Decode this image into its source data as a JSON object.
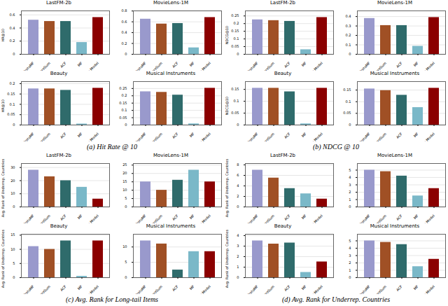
{
  "chart_data": [
    {
      "caption": "(a) Hit Rate @ 10",
      "charts": [
        {
          "type": "bar",
          "title": "LastFM-2b",
          "ylabel": "HR@10",
          "categories": [
            "ProtoMF",
            "ZeroSum",
            "ACF",
            "MF",
            "Our Model"
          ],
          "values": [
            0.52,
            0.5,
            0.5,
            0.18,
            0.56
          ],
          "colors": [
            "#9999cc",
            "#a05025",
            "#2f6b6b",
            "#7ab8c8",
            "#8b0000"
          ],
          "ylim": [
            0,
            0.6608
          ],
          "yticks": [
            0,
            0.2,
            0.4,
            0.6
          ],
          "grid": true
        },
        {
          "type": "bar",
          "title": "MovieLens-1M",
          "categories": [
            "ProtoMF",
            "ZeroSum",
            "ACF",
            "MF",
            "Our Model"
          ],
          "values": [
            0.65,
            0.56,
            0.57,
            0.12,
            0.68
          ],
          "colors": [
            "#9999cc",
            "#a05025",
            "#2f6b6b",
            "#7ab8c8",
            "#8b0000"
          ],
          "ylim": [
            0,
            0.8024
          ],
          "yticks": [
            0,
            0.2,
            0.4,
            0.6,
            0.8
          ],
          "grid": true
        },
        {
          "type": "bar",
          "title": "Beauty",
          "ylabel": "HR@10",
          "categories": [
            "ProtoMF",
            "ZeroSum",
            "ACF",
            "MF",
            "Our Model"
          ],
          "values": [
            0.175,
            0.175,
            0.168,
            0.005,
            0.178
          ],
          "colors": [
            "#9999cc",
            "#a05025",
            "#2f6b6b",
            "#7ab8c8",
            "#8b0000"
          ],
          "ylim": [
            0,
            0.21004
          ],
          "yticks": [
            0,
            0.05,
            0.1,
            0.15,
            0.2
          ],
          "grid": true
        },
        {
          "type": "bar",
          "title": "Musical Instruments",
          "categories": [
            "ProtoMF",
            "ZeroSum",
            "ACF",
            "MF",
            "Our Model"
          ],
          "values": [
            0.228,
            0.224,
            0.205,
            0.008,
            0.252
          ],
          "colors": [
            "#9999cc",
            "#a05025",
            "#2f6b6b",
            "#7ab8c8",
            "#8b0000"
          ],
          "ylim": [
            0,
            0.29736
          ],
          "yticks": [
            0,
            0.05,
            0.1,
            0.15,
            0.2,
            0.25
          ],
          "grid": true
        }
      ]
    },
    {
      "caption": "(b) NDCG @ 10",
      "charts": [
        {
          "type": "bar",
          "title": "LastFM-2b",
          "ylabel": "NDCG@10",
          "categories": [
            "ProtoMF",
            "ZeroSum",
            "ACF",
            "MF",
            "Our Model"
          ],
          "values": [
            0.225,
            0.22,
            0.215,
            0.03,
            0.24
          ],
          "colors": [
            "#9999cc",
            "#a05025",
            "#2f6b6b",
            "#7ab8c8",
            "#8b0000"
          ],
          "ylim": [
            0,
            0.2832
          ],
          "yticks": [
            0,
            0.05,
            0.1,
            0.15,
            0.2,
            0.25
          ],
          "grid": true
        },
        {
          "type": "bar",
          "title": "MovieLens-1M",
          "categories": [
            "ProtoMF",
            "ZeroSum",
            "ACF",
            "MF",
            "Our Model"
          ],
          "values": [
            0.38,
            0.305,
            0.305,
            0.085,
            0.39
          ],
          "colors": [
            "#9999cc",
            "#a05025",
            "#2f6b6b",
            "#7ab8c8",
            "#8b0000"
          ],
          "ylim": [
            0,
            0.4602
          ],
          "yticks": [
            0,
            0.1,
            0.2,
            0.3,
            0.4
          ],
          "grid": true
        },
        {
          "type": "bar",
          "title": "Beauty",
          "ylabel": "NDCG@10",
          "categories": [
            "ProtoMF",
            "ZeroSum",
            "ACF",
            "MF",
            "Our Model"
          ],
          "values": [
            0.155,
            0.155,
            0.14,
            0.005,
            0.155
          ],
          "colors": [
            "#9999cc",
            "#a05025",
            "#2f6b6b",
            "#7ab8c8",
            "#8b0000"
          ],
          "ylim": [
            0,
            0.1829
          ],
          "yticks": [
            0,
            0.05,
            0.1,
            0.15
          ],
          "grid": true
        },
        {
          "type": "bar",
          "title": "Musical Instruments",
          "categories": [
            "ProtoMF",
            "ZeroSum",
            "ACF",
            "MF",
            "Our Model"
          ],
          "values": [
            0.155,
            0.148,
            0.128,
            0.075,
            0.158
          ],
          "colors": [
            "#9999cc",
            "#a05025",
            "#2f6b6b",
            "#7ab8c8",
            "#8b0000"
          ],
          "ylim": [
            0,
            0.18644
          ],
          "yticks": [
            0,
            0.05,
            0.1,
            0.15
          ],
          "grid": true
        }
      ]
    },
    {
      "caption": "(c) Avg. Rank for Long-tail Items",
      "charts": [
        {
          "type": "bar",
          "title": "LastFM-2b",
          "ylabel": "Avg. Rank of Underrep. Countries",
          "categories": [
            "ProtoMF",
            "ZeroSum",
            "ACF",
            "MF",
            "Our Model"
          ],
          "values": [
            28,
            23,
            20,
            15,
            6
          ],
          "colors": [
            "#9999cc",
            "#a05025",
            "#2f6b6b",
            "#7ab8c8",
            "#8b0000"
          ],
          "ylim": [
            0,
            33.04
          ],
          "yticks": [
            0,
            10,
            20,
            30
          ],
          "grid": true
        },
        {
          "type": "bar",
          "title": "MovieLens-1M",
          "categories": [
            "ProtoMF",
            "ZeroSum",
            "ACF",
            "MF",
            "Our Model"
          ],
          "values": [
            15,
            10,
            16,
            22,
            15
          ],
          "colors": [
            "#9999cc",
            "#a05025",
            "#2f6b6b",
            "#7ab8c8",
            "#8b0000"
          ],
          "ylim": [
            0,
            25.96
          ],
          "yticks": [
            0,
            5,
            10,
            15,
            20,
            25
          ],
          "grid": true
        },
        {
          "type": "bar",
          "title": "Beauty",
          "ylabel": "Avg. Rank of Underrep. Countries",
          "categories": [
            "ProtoMF",
            "ZeroSum",
            "ACF",
            "MF",
            "Our Model"
          ],
          "values": [
            11,
            10,
            13,
            0.5,
            13
          ],
          "colors": [
            "#9999cc",
            "#a05025",
            "#2f6b6b",
            "#7ab8c8",
            "#8b0000"
          ],
          "ylim": [
            0,
            15.34
          ],
          "yticks": [
            0,
            5,
            10,
            15
          ],
          "grid": true
        },
        {
          "type": "bar",
          "title": "Musical Instruments",
          "categories": [
            "ProtoMF",
            "ZeroSum",
            "ACF",
            "MF",
            "Our Model"
          ],
          "values": [
            12,
            11,
            2.5,
            8.5,
            8.5
          ],
          "colors": [
            "#9999cc",
            "#a05025",
            "#2f6b6b",
            "#7ab8c8",
            "#8b0000"
          ],
          "ylim": [
            0,
            14.16
          ],
          "yticks": [
            0,
            5,
            10
          ],
          "grid": true
        }
      ]
    },
    {
      "caption": "(d) Avg. Rank for Underrep. Countries",
      "charts": [
        {
          "type": "bar",
          "title": "LastFM-2b",
          "ylabel": "Avg. Rank of Underrep. Countries",
          "categories": [
            "ProtoMF",
            "ZeroSum",
            "ACF",
            "MF",
            "Our Model"
          ],
          "values": [
            7.0,
            5.5,
            3.5,
            2.5,
            1.5
          ],
          "colors": [
            "#9999cc",
            "#a05025",
            "#2f6b6b",
            "#7ab8c8",
            "#8b0000"
          ],
          "ylim": [
            0,
            8.26
          ],
          "yticks": [
            0,
            2,
            4,
            6,
            8
          ],
          "grid": true
        },
        {
          "type": "bar",
          "title": "MovieLens-1M",
          "categories": [
            "ProtoMF",
            "ZeroSum",
            "ACF",
            "MF",
            "Our Model"
          ],
          "values": [
            5.0,
            4.8,
            4.2,
            1.5,
            2.5
          ],
          "colors": [
            "#9999cc",
            "#a05025",
            "#2f6b6b",
            "#7ab8c8",
            "#8b0000"
          ],
          "ylim": [
            0,
            5.9
          ],
          "yticks": [
            0,
            1,
            2,
            3,
            4,
            5
          ],
          "grid": true
        },
        {
          "type": "bar",
          "title": "Beauty",
          "ylabel": "Avg. Rank of Underrep. Countries",
          "categories": [
            "ProtoMF",
            "ZeroSum",
            "ACF",
            "MF",
            "Our Model"
          ],
          "values": [
            3.5,
            3.2,
            3.3,
            0.5,
            1.5
          ],
          "colors": [
            "#9999cc",
            "#a05025",
            "#2f6b6b",
            "#7ab8c8",
            "#8b0000"
          ],
          "ylim": [
            0,
            4.13
          ],
          "yticks": [
            0,
            1,
            2,
            3,
            4
          ],
          "grid": true
        },
        {
          "type": "bar",
          "title": "Musical Instruments",
          "categories": [
            "ProtoMF",
            "ZeroSum",
            "ACF",
            "MF",
            "Our Model"
          ],
          "values": [
            5.0,
            4.8,
            4.5,
            1.5,
            2.5
          ],
          "colors": [
            "#9999cc",
            "#a05025",
            "#2f6b6b",
            "#7ab8c8",
            "#8b0000"
          ],
          "ylim": [
            0,
            5.9
          ],
          "yticks": [
            0,
            1,
            2,
            3,
            4,
            5
          ],
          "grid": true
        }
      ]
    }
  ]
}
